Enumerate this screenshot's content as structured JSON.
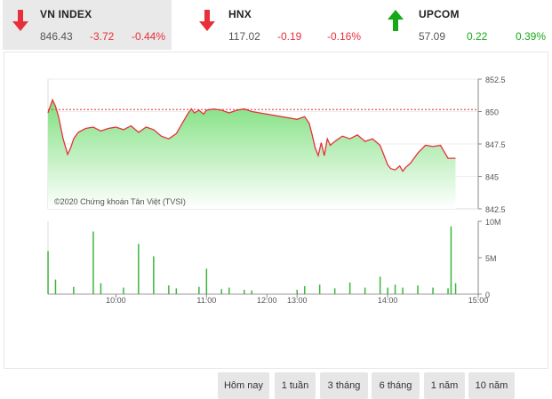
{
  "indices": [
    {
      "name": "VN INDEX",
      "value": "846.43",
      "change": "-3.72",
      "percent": "-0.44%",
      "direction": "down",
      "arrow_icon": "arrow-down-icon",
      "active": true
    },
    {
      "name": "HNX",
      "value": "117.02",
      "change": "-0.19",
      "percent": "-0.16%",
      "direction": "down",
      "arrow_icon": "arrow-down-icon",
      "active": false
    },
    {
      "name": "UPCOM",
      "value": "57.09",
      "change": "0.22",
      "percent": "0.39%",
      "direction": "up",
      "arrow_icon": "arrow-up-icon",
      "active": false
    }
  ],
  "colors": {
    "down": "#e8303a",
    "up": "#17a817",
    "line": "#e8303a",
    "area_top": "#7fe07f",
    "area_bottom": "#ffffff",
    "volume": "#3db53d",
    "reference": "#e8303a"
  },
  "chart_data": {
    "type": "area",
    "copyright": "©2020 Chứng khoán Tân Việt (TVSI)",
    "price_axis": {
      "ticks": [
        "852.5",
        "850",
        "847.5",
        "845",
        "842.5"
      ],
      "values": [
        852.5,
        850,
        847.5,
        845,
        842.5
      ],
      "min": 842.5,
      "max": 852.5
    },
    "volume_axis": {
      "ticks": [
        "10M",
        "5M",
        "0"
      ],
      "values": [
        10,
        5,
        0
      ],
      "unit": "M",
      "min": 0,
      "max": 10
    },
    "time_axis": {
      "ticks": [
        "10:00",
        "11:00",
        "12:00",
        "13:00",
        "14:00",
        "15:00"
      ],
      "start": "9:15",
      "end": "15:00"
    },
    "reference_price": 850.15,
    "price_series": {
      "name": "VN INDEX",
      "time": [
        "9:15",
        "9:18",
        "9:20",
        "9:22",
        "9:25",
        "9:28",
        "9:30",
        "9:32",
        "9:35",
        "9:40",
        "9:45",
        "9:50",
        "9:55",
        "10:00",
        "10:05",
        "10:10",
        "10:15",
        "10:20",
        "10:25",
        "10:30",
        "10:35",
        "10:40",
        "10:45",
        "10:48",
        "10:50",
        "10:52",
        "10:55",
        "10:58",
        "11:00",
        "11:05",
        "11:10",
        "11:15",
        "11:20",
        "11:25",
        "11:30",
        "13:00",
        "13:05",
        "13:08",
        "13:10",
        "13:12",
        "13:14",
        "13:16",
        "13:18",
        "13:20",
        "13:22",
        "13:25",
        "13:30",
        "13:35",
        "13:40",
        "13:45",
        "13:50",
        "13:55",
        "14:00",
        "14:02",
        "14:05",
        "14:08",
        "14:10",
        "14:12",
        "14:15",
        "14:20",
        "14:25",
        "14:30",
        "14:35",
        "14:40",
        "14:45"
      ],
      "values": [
        849.9,
        850.9,
        850.4,
        849.6,
        847.9,
        846.7,
        847.2,
        847.9,
        848.4,
        848.7,
        848.8,
        848.5,
        848.7,
        848.8,
        848.6,
        848.9,
        848.4,
        848.8,
        848.6,
        848.1,
        847.9,
        848.3,
        849.3,
        849.9,
        850.2,
        849.9,
        850.1,
        849.8,
        850.1,
        850.2,
        850.1,
        849.9,
        850.1,
        850.2,
        850.0,
        849.4,
        849.6,
        849.1,
        848.2,
        847.2,
        846.6,
        847.6,
        846.6,
        847.9,
        847.4,
        847.7,
        848.1,
        847.9,
        848.2,
        847.7,
        847.9,
        847.4,
        845.9,
        845.6,
        845.5,
        845.8,
        845.4,
        845.7,
        846.0,
        846.8,
        847.4,
        847.3,
        847.4,
        846.4,
        846.4
      ]
    },
    "volume_series": {
      "name": "Volume",
      "time": [
        "9:15",
        "9:20",
        "9:32",
        "9:45",
        "9:50",
        "10:05",
        "10:15",
        "10:25",
        "10:35",
        "10:40",
        "10:55",
        "11:00",
        "11:10",
        "11:15",
        "11:25",
        "11:30",
        "13:00",
        "13:05",
        "13:15",
        "13:25",
        "13:35",
        "13:45",
        "13:55",
        "14:00",
        "14:05",
        "14:10",
        "14:20",
        "14:30",
        "14:40",
        "14:42",
        "14:45"
      ],
      "values": [
        5.9,
        2.0,
        1.0,
        8.6,
        1.5,
        0.9,
        6.9,
        5.2,
        1.2,
        0.8,
        1.0,
        3.5,
        0.7,
        0.9,
        0.6,
        0.5,
        0.6,
        1.1,
        1.3,
        0.8,
        1.6,
        0.9,
        2.4,
        0.9,
        1.3,
        0.9,
        1.2,
        0.9,
        0.8,
        9.3,
        1.5
      ]
    }
  },
  "ranges": [
    "Hôm nay",
    "1 tuần",
    "3 tháng",
    "6 tháng",
    "1 năm",
    "10 năm"
  ]
}
